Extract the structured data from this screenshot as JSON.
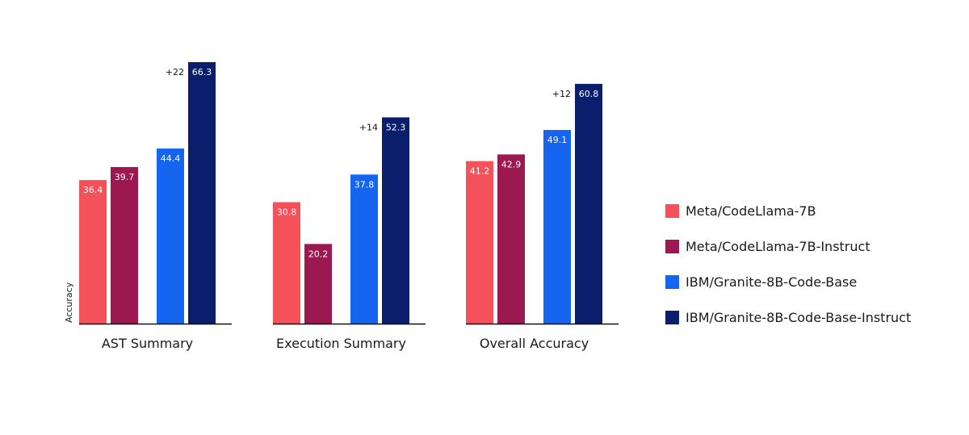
{
  "chart_data": {
    "type": "bar",
    "ylabel": "Accuracy",
    "ylim": [
      0,
      66.3
    ],
    "categories": [
      "AST Summary",
      "Execution Summary",
      "Overall Accuracy"
    ],
    "series": [
      {
        "name": "Meta/CodeLlama-7B",
        "color": "#f4515a",
        "values": [
          36.4,
          30.8,
          41.2
        ]
      },
      {
        "name": "Meta/CodeLlama-7B-Instruct",
        "color": "#9b1850",
        "values": [
          39.7,
          20.2,
          42.9
        ]
      },
      {
        "name": "IBM/Granite-8B-Code-Base",
        "color": "#1565f0",
        "values": [
          44.4,
          37.8,
          49.1
        ]
      },
      {
        "name": "IBM/Granite-8B-Code-Base-Instruct",
        "color": "#0a1e6b",
        "values": [
          66.3,
          52.3,
          60.8
        ]
      }
    ],
    "value_labels": [
      [
        "36.4",
        "30.8",
        "41.2"
      ],
      [
        "39.7",
        "20.2",
        "42.9"
      ],
      [
        "44.4",
        "37.8",
        "49.1"
      ],
      [
        "66.3",
        "52.3",
        "60.8"
      ]
    ],
    "annotations": [
      "+22",
      "+14",
      "+12"
    ],
    "legend_position": "right",
    "grid": false
  }
}
